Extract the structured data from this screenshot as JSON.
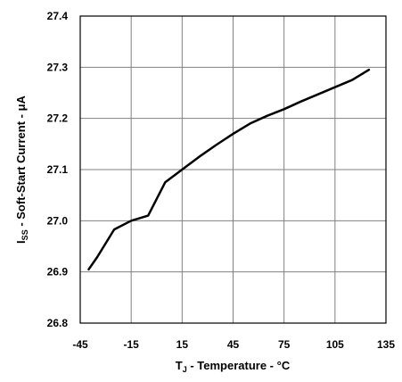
{
  "chart_data": {
    "type": "line",
    "title": "",
    "xlabel": {
      "main": "T",
      "sub": "J",
      "rest": " - Temperature - °C"
    },
    "ylabel": {
      "main": "I",
      "sub": "SS",
      "rest": " - Soft-Start Current - μA"
    },
    "xlim": [
      -45,
      135
    ],
    "ylim": [
      26.8,
      27.4
    ],
    "xticks": [
      "-45",
      "-15",
      "15",
      "45",
      "75",
      "105",
      "135"
    ],
    "yticks": [
      "26.8",
      "26.9",
      "27.0",
      "27.1",
      "27.2",
      "27.3",
      "27.4"
    ],
    "grid": true,
    "series": [
      {
        "x": [
          -40,
          -35,
          -25,
          -15,
          -5,
          5,
          15,
          25,
          35,
          45,
          55,
          65,
          75,
          85,
          95,
          105,
          115,
          125
        ],
        "y": [
          26.905,
          26.929,
          26.983,
          27.0,
          27.01,
          27.075,
          27.1,
          27.125,
          27.148,
          27.17,
          27.19,
          27.205,
          27.218,
          27.233,
          27.247,
          27.261,
          27.275,
          27.295
        ]
      }
    ]
  }
}
